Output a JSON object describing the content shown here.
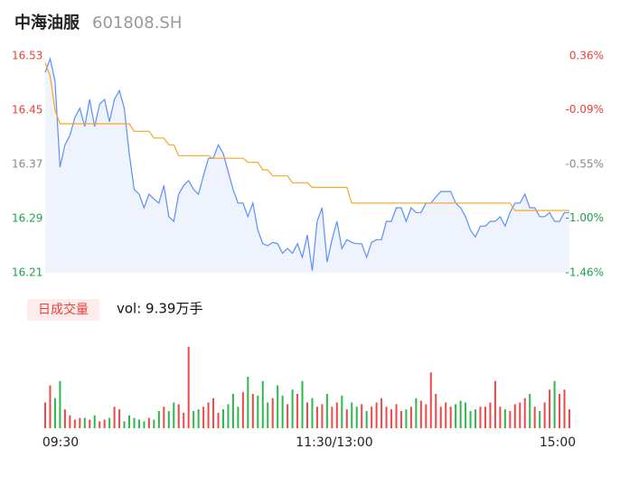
{
  "header": {
    "name": "中海油服",
    "code": "601808.SH"
  },
  "chart_data": [
    {
      "type": "line",
      "series": [
        {
          "name": "price",
          "color": "#5b8ff9",
          "fill": "#eef3fd",
          "values": [
            16.506,
            16.526,
            16.493,
            16.366,
            16.399,
            16.413,
            16.439,
            16.453,
            16.426,
            16.466,
            16.426,
            16.459,
            16.466,
            16.433,
            16.466,
            16.479,
            16.453,
            16.386,
            16.333,
            16.326,
            16.306,
            16.326,
            16.319,
            16.313,
            16.339,
            16.293,
            16.286,
            16.326,
            16.339,
            16.346,
            16.333,
            16.326,
            16.353,
            16.379,
            16.379,
            16.399,
            16.386,
            16.359,
            16.333,
            16.313,
            16.313,
            16.293,
            16.313,
            16.273,
            16.253,
            16.25,
            16.255,
            16.253,
            16.239,
            16.246,
            16.239,
            16.253,
            16.233,
            16.266,
            16.213,
            16.286,
            16.306,
            16.226,
            16.259,
            16.286,
            16.246,
            16.259,
            16.255,
            16.253,
            16.253,
            16.233,
            16.255,
            16.259,
            16.259,
            16.286,
            16.286,
            16.306,
            16.306,
            16.286,
            16.306,
            16.299,
            16.299,
            16.313,
            16.313,
            16.322,
            16.33,
            16.33,
            16.33,
            16.313,
            16.306,
            16.293,
            16.273,
            16.263,
            16.279,
            16.279,
            16.286,
            16.286,
            16.293,
            16.279,
            16.299,
            16.313,
            16.313,
            16.326,
            16.306,
            16.306,
            16.293,
            16.293,
            16.299,
            16.286,
            16.286,
            16.299,
            16.299
          ]
        },
        {
          "name": "average",
          "color": "#f5a623",
          "values": [
            16.52,
            16.5,
            16.45,
            16.43,
            16.43,
            16.43,
            16.43,
            16.43,
            16.43,
            16.43,
            16.43,
            16.43,
            16.43,
            16.43,
            16.43,
            16.43,
            16.43,
            16.43,
            16.419,
            16.419,
            16.419,
            16.419,
            16.409,
            16.409,
            16.409,
            16.399,
            16.399,
            16.383,
            16.383,
            16.383,
            16.383,
            16.383,
            16.383,
            16.383,
            16.379,
            16.379,
            16.379,
            16.379,
            16.379,
            16.379,
            16.379,
            16.373,
            16.373,
            16.373,
            16.362,
            16.362,
            16.353,
            16.353,
            16.353,
            16.353,
            16.343,
            16.343,
            16.343,
            16.343,
            16.336,
            16.336,
            16.336,
            16.336,
            16.336,
            16.336,
            16.336,
            16.336,
            16.313,
            16.313,
            16.313,
            16.313,
            16.313,
            16.313,
            16.313,
            16.313,
            16.313,
            16.313,
            16.313,
            16.313,
            16.313,
            16.313,
            16.313,
            16.313,
            16.313,
            16.313,
            16.313,
            16.313,
            16.313,
            16.313,
            16.313,
            16.313,
            16.313,
            16.313,
            16.313,
            16.313,
            16.313,
            16.313,
            16.313,
            16.313,
            16.313,
            16.302,
            16.302,
            16.302,
            16.302,
            16.302,
            16.302,
            16.302,
            16.302,
            16.302,
            16.302,
            16.302,
            16.302
          ]
        }
      ],
      "ylim": [
        16.21,
        16.53
      ],
      "yticks": [
        16.53,
        16.45,
        16.37,
        16.29,
        16.21
      ],
      "y2lim": [
        -1.46,
        0.36
      ],
      "y2ticks": [
        {
          "value": 0.36,
          "label": "0.36%"
        },
        {
          "value": -0.09,
          "label": "-0.09%"
        },
        {
          "value": -0.55,
          "label": "-0.55%"
        },
        {
          "value": -1.0,
          "label": "-1.00%"
        },
        {
          "value": -1.46,
          "label": "-1.46%"
        }
      ],
      "tick_colors": [
        "#e8413c",
        "#e8413c",
        "#888888",
        "#1aa34a",
        "#1aa34a"
      ],
      "grid": false
    },
    {
      "type": "volume",
      "legend": "日成交量",
      "volume_label": "vol: 9.39万手",
      "up_color": "#f04848",
      "down_color": "#2db84d",
      "ylim": [
        0,
        100
      ],
      "values": [
        30,
        50,
        35,
        55,
        22,
        15,
        10,
        12,
        12,
        10,
        15,
        8,
        10,
        12,
        25,
        22,
        8,
        15,
        12,
        10,
        8,
        12,
        10,
        20,
        25,
        20,
        30,
        28,
        18,
        95,
        20,
        22,
        25,
        30,
        35,
        18,
        22,
        28,
        40,
        25,
        42,
        60,
        40,
        38,
        55,
        30,
        35,
        50,
        38,
        28,
        45,
        40,
        55,
        30,
        35,
        25,
        28,
        40,
        25,
        30,
        38,
        22,
        30,
        25,
        28,
        20,
        25,
        30,
        35,
        25,
        22,
        28,
        20,
        22,
        25,
        35,
        32,
        28,
        65,
        40,
        25,
        30,
        25,
        28,
        32,
        30,
        20,
        22,
        25,
        25,
        30,
        55,
        25,
        22,
        20,
        28,
        30,
        35,
        40,
        25,
        20,
        30,
        45,
        55,
        40,
        45,
        22
      ],
      "x_labels": [
        "09:30",
        "11:30/13:00",
        "15:00"
      ]
    }
  ]
}
